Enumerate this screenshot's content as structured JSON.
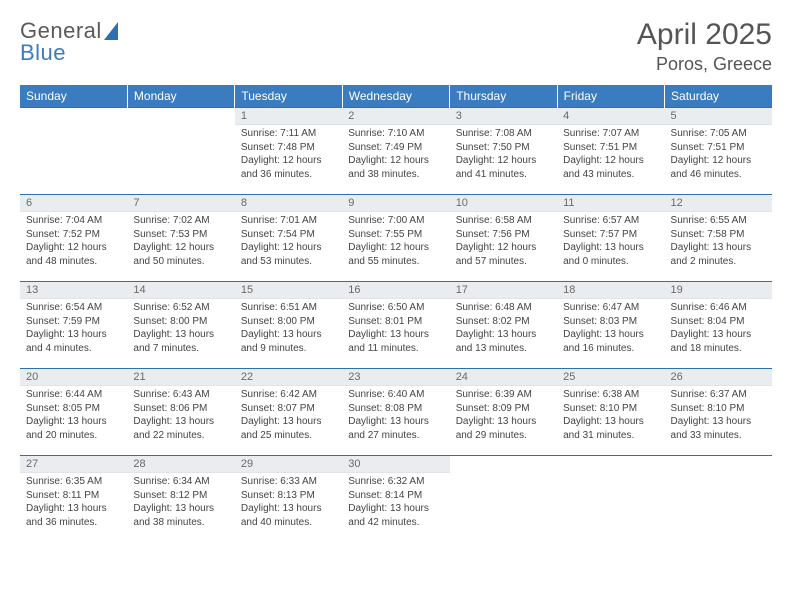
{
  "brand": {
    "part1": "General",
    "part2": "Blue"
  },
  "title": "April 2025",
  "location": "Poros, Greece",
  "colors": {
    "header_bg": "#3b7bbf",
    "header_text": "#ffffff",
    "rule": "#2f6fb0",
    "daynum_bg": "#e9edf0",
    "daynum_text": "#6a6a6a",
    "body_text": "#444444",
    "title_text": "#555555"
  },
  "typography": {
    "title_fontsize": 30,
    "location_fontsize": 18,
    "dayhead_fontsize": 12,
    "daynum_fontsize": 11,
    "daytext_fontsize": 10
  },
  "layout": {
    "columns": 7,
    "rows": 5,
    "leading_blanks": 2,
    "total_days": 30
  },
  "day_headers": [
    "Sunday",
    "Monday",
    "Tuesday",
    "Wednesday",
    "Thursday",
    "Friday",
    "Saturday"
  ],
  "days": [
    {
      "n": 1,
      "sunrise": "7:11 AM",
      "sunset": "7:48 PM",
      "daylight": "12 hours and 36 minutes."
    },
    {
      "n": 2,
      "sunrise": "7:10 AM",
      "sunset": "7:49 PM",
      "daylight": "12 hours and 38 minutes."
    },
    {
      "n": 3,
      "sunrise": "7:08 AM",
      "sunset": "7:50 PM",
      "daylight": "12 hours and 41 minutes."
    },
    {
      "n": 4,
      "sunrise": "7:07 AM",
      "sunset": "7:51 PM",
      "daylight": "12 hours and 43 minutes."
    },
    {
      "n": 5,
      "sunrise": "7:05 AM",
      "sunset": "7:51 PM",
      "daylight": "12 hours and 46 minutes."
    },
    {
      "n": 6,
      "sunrise": "7:04 AM",
      "sunset": "7:52 PM",
      "daylight": "12 hours and 48 minutes."
    },
    {
      "n": 7,
      "sunrise": "7:02 AM",
      "sunset": "7:53 PM",
      "daylight": "12 hours and 50 minutes."
    },
    {
      "n": 8,
      "sunrise": "7:01 AM",
      "sunset": "7:54 PM",
      "daylight": "12 hours and 53 minutes."
    },
    {
      "n": 9,
      "sunrise": "7:00 AM",
      "sunset": "7:55 PM",
      "daylight": "12 hours and 55 minutes."
    },
    {
      "n": 10,
      "sunrise": "6:58 AM",
      "sunset": "7:56 PM",
      "daylight": "12 hours and 57 minutes."
    },
    {
      "n": 11,
      "sunrise": "6:57 AM",
      "sunset": "7:57 PM",
      "daylight": "13 hours and 0 minutes."
    },
    {
      "n": 12,
      "sunrise": "6:55 AM",
      "sunset": "7:58 PM",
      "daylight": "13 hours and 2 minutes."
    },
    {
      "n": 13,
      "sunrise": "6:54 AM",
      "sunset": "7:59 PM",
      "daylight": "13 hours and 4 minutes."
    },
    {
      "n": 14,
      "sunrise": "6:52 AM",
      "sunset": "8:00 PM",
      "daylight": "13 hours and 7 minutes."
    },
    {
      "n": 15,
      "sunrise": "6:51 AM",
      "sunset": "8:00 PM",
      "daylight": "13 hours and 9 minutes."
    },
    {
      "n": 16,
      "sunrise": "6:50 AM",
      "sunset": "8:01 PM",
      "daylight": "13 hours and 11 minutes."
    },
    {
      "n": 17,
      "sunrise": "6:48 AM",
      "sunset": "8:02 PM",
      "daylight": "13 hours and 13 minutes."
    },
    {
      "n": 18,
      "sunrise": "6:47 AM",
      "sunset": "8:03 PM",
      "daylight": "13 hours and 16 minutes."
    },
    {
      "n": 19,
      "sunrise": "6:46 AM",
      "sunset": "8:04 PM",
      "daylight": "13 hours and 18 minutes."
    },
    {
      "n": 20,
      "sunrise": "6:44 AM",
      "sunset": "8:05 PM",
      "daylight": "13 hours and 20 minutes."
    },
    {
      "n": 21,
      "sunrise": "6:43 AM",
      "sunset": "8:06 PM",
      "daylight": "13 hours and 22 minutes."
    },
    {
      "n": 22,
      "sunrise": "6:42 AM",
      "sunset": "8:07 PM",
      "daylight": "13 hours and 25 minutes."
    },
    {
      "n": 23,
      "sunrise": "6:40 AM",
      "sunset": "8:08 PM",
      "daylight": "13 hours and 27 minutes."
    },
    {
      "n": 24,
      "sunrise": "6:39 AM",
      "sunset": "8:09 PM",
      "daylight": "13 hours and 29 minutes."
    },
    {
      "n": 25,
      "sunrise": "6:38 AM",
      "sunset": "8:10 PM",
      "daylight": "13 hours and 31 minutes."
    },
    {
      "n": 26,
      "sunrise": "6:37 AM",
      "sunset": "8:10 PM",
      "daylight": "13 hours and 33 minutes."
    },
    {
      "n": 27,
      "sunrise": "6:35 AM",
      "sunset": "8:11 PM",
      "daylight": "13 hours and 36 minutes."
    },
    {
      "n": 28,
      "sunrise": "6:34 AM",
      "sunset": "8:12 PM",
      "daylight": "13 hours and 38 minutes."
    },
    {
      "n": 29,
      "sunrise": "6:33 AM",
      "sunset": "8:13 PM",
      "daylight": "13 hours and 40 minutes."
    },
    {
      "n": 30,
      "sunrise": "6:32 AM",
      "sunset": "8:14 PM",
      "daylight": "13 hours and 42 minutes."
    }
  ],
  "labels": {
    "sunrise": "Sunrise:",
    "sunset": "Sunset:",
    "daylight": "Daylight:"
  }
}
